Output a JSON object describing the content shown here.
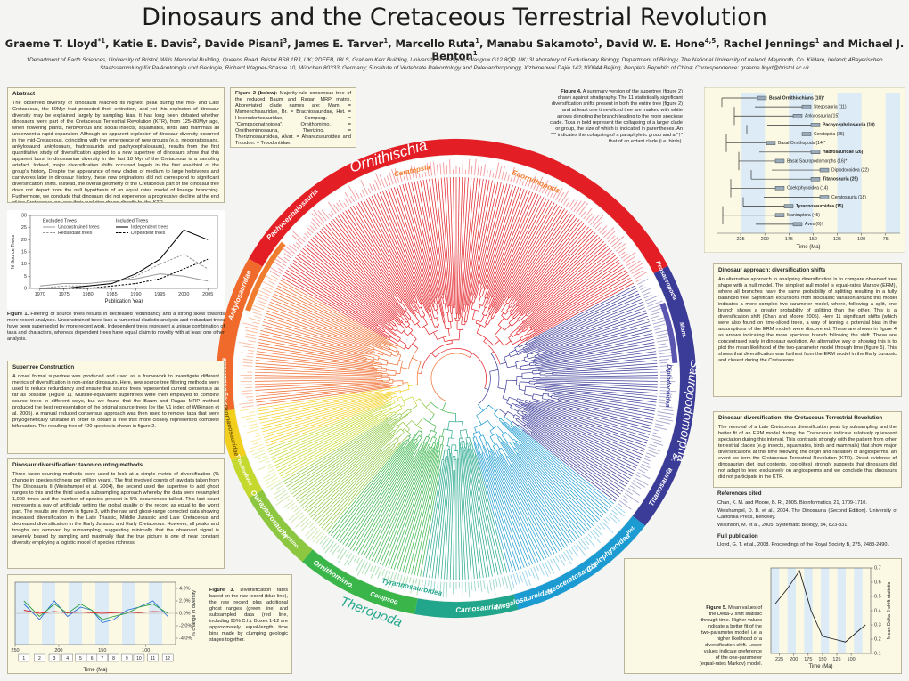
{
  "header": {
    "title": "Dinosaurs and the Cretaceous Terrestrial Revolution",
    "authors": [
      {
        "text": "Graeme T. Lloyd"
      },
      {
        "sup": "*1"
      },
      {
        "text": ", Katie E. Davis"
      },
      {
        "sup": "2"
      },
      {
        "text": ", Davide Pisani"
      },
      {
        "sup": "3"
      },
      {
        "text": ", James E. Tarver"
      },
      {
        "sup": "1"
      },
      {
        "text": ", Marcello Ruta"
      },
      {
        "sup": "1"
      },
      {
        "text": ", Manabu Sakamoto"
      },
      {
        "sup": "1"
      },
      {
        "text": ", David W. E. Hone"
      },
      {
        "sup": "4,5"
      },
      {
        "text": ", Rachel Jennings"
      },
      {
        "sup": "1"
      },
      {
        "text": " and Michael J. Benton"
      },
      {
        "sup": "1"
      }
    ],
    "affiliations": "1Department of Earth Sciences, University of Bristol, Wills Memorial Building, Queens Road, Bristol BS8 1RJ, UK; 2DEEB, IBLS, Graham Kerr Building, University of Glasgow, Glasgow G12 8QP, UK; 3Laboratory of Evolutionary Biology, Department of Biology, The National University of Ireland, Maynooth, Co. Kildare, Ireland; 4Bayerischen Staatssammlung für Paläontologie und Geologie, Richard Wagner-Strasse 10, München 80333, Germany; 5Institute of Vertebrate Paleontology and Paleoanthropology, Xizhimenwai Dajie 142,100044 Beijing, People's Republic of China; Correspondence: graeme.lloyd@bristol.ac.uk"
  },
  "abstract": {
    "heading": "Abstract",
    "text": "The observed diversity of dinosaurs reached its highest peak during the mid- and Late Cretaceous, the 50Myr that preceded their extinction, and yet this explosion of dinosaur diversity may be explained largely by sampling bias. It has long been debated whether dinosaurs were part of the Cretaceous Terrestrial Revolution (KTR), from 125–80Myr ago, when flowering plants, herbivorous and social insects, squamates, birds and mammals all underwent a rapid expansion. Although an apparent explosion of dinosaur diversity occurred in the mid-Cretaceous, coinciding with the emergence of new groups (e.g. neoceratopsians, ankylosaurid ankylosaurs, hadrosaurids and pachycephalosaurs), results from the first quantitative study of diversification applied to a new supertree of dinosaurs show that this apparent burst in dinosaurian diversity in the last 18 Myr of the Cretaceous is a sampling artefact. Indeed, major diversification shifts occurred largely in the first one-third of the group's history. Despite the appearance of new clades of medium to large herbivores and carnivores later in dinosaur history, these new originations did not correspond to significant diversification shifts. Instead, the overall geometry of the Cretaceous part of the dinosaur tree does not depart from the null hypothesis of an equal rates model of lineage branching. Furthermore, we conclude that dinosaurs did not experience a progressive decline at the end of the Cretaceous, nor was their evolution driven directly by the KTR."
  },
  "figure1": {
    "x_label": "Publication Year",
    "y_label": "N Source Trees",
    "x": [
      1970,
      1975,
      1980,
      1985,
      1990,
      1995,
      2000,
      2005
    ],
    "xlim": [
      1968,
      2007
    ],
    "xticks": [
      1970,
      1975,
      1980,
      1985,
      1990,
      1995,
      2000,
      2005
    ],
    "ylim": [
      0,
      30
    ],
    "yticks": [
      0,
      5,
      10,
      15,
      20,
      25,
      30
    ],
    "legend_groups": [
      {
        "title": "Excluded Trees",
        "series": [
          {
            "name": "Unconstrained trees",
            "color": "#999999",
            "dash": false,
            "values": [
              1,
              2,
              2,
              3,
              4,
              6,
              5,
              3
            ]
          },
          {
            "name": "Redundant trees",
            "color": "#999999",
            "dash": true,
            "values": [
              0,
              1,
              1,
              2,
              5,
              10,
              14,
              8
            ]
          }
        ]
      },
      {
        "title": "Included Trees",
        "series": [
          {
            "name": "Independent trees",
            "color": "#000000",
            "dash": false,
            "values": [
              0,
              0,
              1,
              2,
              6,
              12,
              24,
              20
            ]
          },
          {
            "name": "Dependent trees",
            "color": "#000000",
            "dash": true,
            "values": [
              0,
              0,
              0,
              1,
              2,
              4,
              8,
              12
            ]
          }
        ]
      }
    ],
    "caption_label": "Figure 1.",
    "caption": "Filtering of source trees results in decreased redundancy and a strong skew towards more recent analyses. Unconstrained trees lack a numerical cladistic analysis and redundant trees have been superseded by more recent work. Independent trees represent a unique combination of taxa and characters, whereas dependent trees have equal claim to novelty with at least one other analysis."
  },
  "supertree": {
    "heading": "Supertree Construction",
    "text": "A novel formal supertree was produced and used as a framework to investigate different metrics of diversification in non-avian dinosaurs. Here, new source tree filtering methods were used to reduce redundancy and ensure that source trees represented current consensus as far as possible (Figure 1). Multiple-equivalent supertrees were then employed to combine source trees in different ways, but we found that the Baum and Ragan MRP method produced the best representation of the original source trees (by the V1 index of Wilkinson et al. 2005). A manual reduced consensus approach was then used to remove taxa that were phylogenetically unstable in order to obtain a tree that more closely represented complete bifurcation. The resulting tree of 420 species is shown in figure 2."
  },
  "taxon_counting": {
    "heading": "Dinosaur diversification: taxon counting methods",
    "text": "Three taxon-counting methods were used to look at a simple metric of diversification (% change in species richness per million years). The first involved counts of raw data taken from The Dinosauria II (Weishampel et al. 2004), the second used the supertree to add ghost ranges to this and the third used a subsampling approach whereby the data were resampled 1,000 times and the number of species present in 5% occurrences tallied. This last count represents a way of artificially setting the global quality of the record as equal to the worst part. The results are shown in figure 3, with the raw and ghost-range corrected data showing increased diversification in the Late Triassic, Middle Jurassic and Late Cretaceous and decreased diversification in the Early Jurassic and Early Cretaceous. However, all peaks and troughs are removed by subsampling, suggesting minimally that the observed signal is severely biased by sampling and maximally that the true picture is one of near constant diversity employing a logistic model of species richness."
  },
  "figure2": {
    "caption_label": "Figure 2 (below):",
    "caption": "Majority-rule consensus tree of the reduced Baum and Ragan MRP matrix. Abbreviated clade names are: Mam. = Mamenchisauridae, Br. = Brachiosauridae, Het. = Heterodontosauridae, Compsog. = “Compsognathoidea”, Ornithomimo. = Ornithomimosauria, Therizino. = Therizinosauroidea, Alvar. = Alvarezsauroidea and Troodon. = Troodontidae.",
    "clades": [
      "Ornithischia",
      "Ceratopsia",
      "Euornithopoda",
      "Pachycephalosauria",
      "Ankylosauridae",
      "Stegosauridae",
      "Dromaeosauridae",
      "Troodon.",
      "Aves",
      "Oviraptorosauria",
      "Therizino.",
      "Ornithomimo.",
      "Compsog.",
      "Tyrannosauroidea",
      "Theropoda",
      "Carnosauria",
      "Megalosauroidea",
      "Neoceratosauria",
      "Coelophysoidea",
      "Het.",
      "Titanosauria",
      "Br.",
      "Sauropodomorpha",
      "Diplodocoidea",
      "Mam.",
      "Prosauropoda"
    ]
  },
  "figure4": {
    "caption_label": "Figure 4.",
    "caption": "A summary version of the supertree (figure 2) drawn against stratigraphy. The 11 statistically significant diversification shifts present in both the entire tree (figure 2) and at least one time-sliced tree are marked with white arrows denoting the branch leading to the more speciose clade. Taxa in bold represent the collapsing of a larger clade or group, the size of which is indicated in parentheses. An “*” indicates the collapsing of a paraphyletic group and a “†” that of an extant clade (i.e. birds).",
    "taxa": [
      "Basal Ornithischians (10)*",
      "Stegosauria (11)",
      "Ankylosauria (15)",
      "Pachycephalosauria (10)",
      "Ceratopsia (35)",
      "Basal Ornithopods (14)*",
      "Hadrosauridae (26)",
      "Basal Sauropodomorphs (16)*",
      "Diplodocoidea (22)",
      "Titanosauria (25)",
      "Coelophysoidea (14)",
      "Ceratosauria (18)",
      "Tyrannosauroidea (15)",
      "Maniraptora (45)",
      "Aves (6)†"
    ],
    "x_label": "Time (Ma)",
    "xlim": [
      250,
      60
    ],
    "xticks": [
      225,
      200,
      175,
      150,
      125,
      100,
      75
    ]
  },
  "shifts": {
    "heading": "Dinosaur approach: diversification shifts",
    "text": "An alternative approach to analysing diversification is to compare observed tree shape with a null model. The simplest null model is equal-rates Markov (ERM), where all branches have the same probability of splitting resulting in a fully balanced tree. Significant excursions from stochastic variation around this model indicates a more complex two-parameter model, where, following a split, one branch shows a greater probability of splitting than the other. This is a diversification shift (Chan and Moore 2005). Here 11 significant shifts (which were also found on time-sliced trees, a way of ironing a potential bias in the assumptions of the ERM model) were discovered. These are shown in figure 4 as arrows indicating the more speciose branch following the shift. These are concentrated early in dinosaur evolution. An alternative way of showing this is to plot the mean likelihood of the two-parameter model through time (figure 5). This shows that diversification was furthest from the ERM model in the Early Jurassic and closest during the Cretaceous."
  },
  "ktr": {
    "heading": "Dinosaur diversification: the Cretaceous Terrestrial Revolution",
    "text": "The removal of a Late Cretaceous diversification peak by subsampling and the better fit of an ERM model during the Cretaceous indicate relatively quiescent speciation during this interval. This contrasts strongly with the pattern from other terrestrial clades (e.g. insects, squamates, birds and mammals) that show major diversifications at this time following the origin and radiation of angiosperms, an event we term the Cretaceous Terrestrial Revolution (KTR). Direct evidence of dinosaurian diet (gut contents, coprolites) strongly suggests that dinosaurs did not adapt to feed exclusively on angiosperms and we conclude that dinosaurs did not participate in the KTR."
  },
  "references": {
    "heading": "References cited",
    "items": [
      "Chan, K. M. and Moore, B. R., 2005. Bioinformatics, 21, 1709-1710.",
      "Weishampel, D. B. et al., 2004. The Dinosauria (Second Edition). University of California Press, Berkeley.",
      "Wilkinson, M. et al., 2005. Systematic Biology, 54, 823-831."
    ],
    "full_heading": "Full publication",
    "full": "Lloyd, G. T. et al., 2008. Proceedings of the Royal Society B, 275, 2483-2490."
  },
  "figure3": {
    "caption_label": "Figure 3.",
    "caption": "Diversification rates based on the raw record (blue line), the raw record plus additional ghost ranges (green line) and subsampled data (red line, including 95% C.I.). Boxes 1-12 are approximately equal-length time bins made by clumping geologic stages together.",
    "x_label": "Time (Ma)",
    "y_label": "% change in diversity",
    "xlim": [
      250,
      66
    ],
    "xticks": [
      250,
      200,
      150,
      100
    ],
    "ylim": [
      -5,
      5
    ],
    "yticks": [
      {
        "value": 4,
        "label": "4.0%"
      },
      {
        "value": 2,
        "label": "2.0%"
      },
      {
        "value": 0,
        "label": "0.0%"
      },
      {
        "value": -2,
        "label": "-2.0%"
      },
      {
        "value": -4,
        "label": "-4.0%"
      }
    ],
    "bins": [
      1,
      2,
      3,
      4,
      5,
      6,
      7,
      8,
      9,
      10,
      11,
      12
    ],
    "x": [
      240,
      222,
      205,
      190,
      175,
      162,
      150,
      137,
      122,
      108,
      92,
      75
    ],
    "series": [
      {
        "color": "#2a6fd6",
        "values": [
          1.5,
          -1,
          2,
          -0.5,
          1,
          0.5,
          -1.5,
          -1,
          0.5,
          1,
          2,
          -0.5
        ]
      },
      {
        "color": "#2ea043",
        "values": [
          2,
          -0.5,
          1.5,
          0,
          1.5,
          0.5,
          -1,
          -0.5,
          0,
          1,
          1.5,
          0
        ]
      },
      {
        "color": "#d62728",
        "values": [
          0.5,
          0,
          0.3,
          0.1,
          0.2,
          0.1,
          0,
          0.1,
          0.2,
          0.1,
          0.3,
          0.2
        ]
      }
    ]
  },
  "figure5": {
    "caption_label": "Figure 5.",
    "caption": "Mean values of the Delta-2 shift statistic through time. Higher values indicate a better fit of the two-parameter model, i.e. a higher likelihood of a diversification shift. Lower values indicate preference of the one-parameter (equal-rates Markov) model.",
    "x_label": "Time (Ma)",
    "y_label": "Mean Delta-2 shift statistic",
    "xlim": [
      240,
      66
    ],
    "xticks": [
      225,
      200,
      175,
      150,
      125,
      100
    ],
    "ylim": [
      0.1,
      0.7
    ],
    "yticks": [
      0.1,
      0.2,
      0.3,
      0.4,
      0.5,
      0.6,
      0.7
    ],
    "x": [
      232,
      212,
      190,
      170,
      150,
      130,
      110,
      90,
      75
    ],
    "color": "#222222",
    "values": [
      0.45,
      0.55,
      0.68,
      0.4,
      0.22,
      0.2,
      0.18,
      0.25,
      0.3
    ]
  }
}
